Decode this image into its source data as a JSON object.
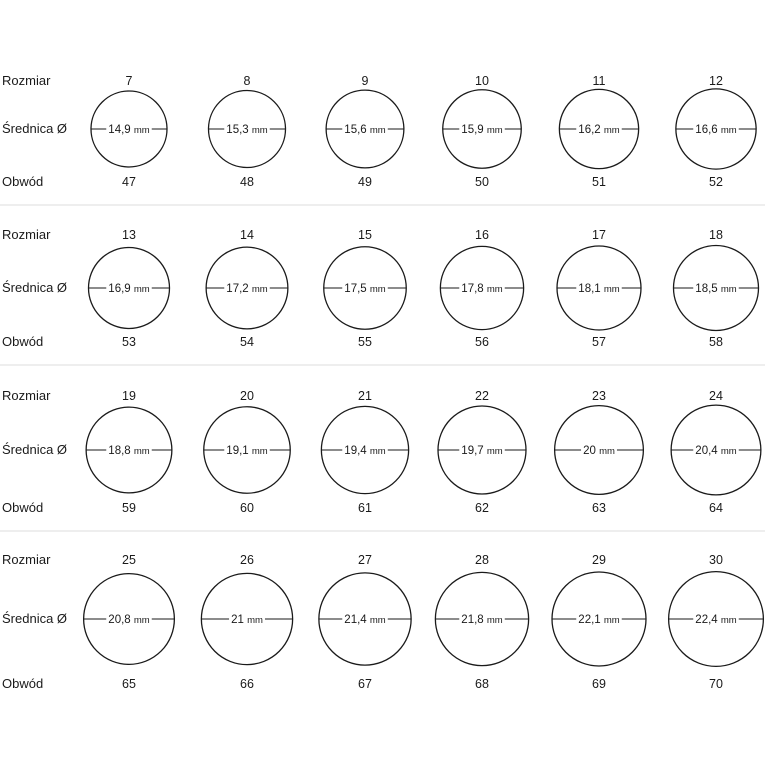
{
  "labels": {
    "size": "Rozmiar",
    "diameter": "Średnica Ø",
    "circumference": "Obwód",
    "unit": "mm"
  },
  "chart_data": {
    "type": "table",
    "columns": [
      "Rozmiar",
      "Średnica Ø",
      "Obwód"
    ],
    "rows": [
      {
        "size": "7",
        "diameter": "14,9",
        "circumference": "47"
      },
      {
        "size": "8",
        "diameter": "15,3",
        "circumference": "48"
      },
      {
        "size": "9",
        "diameter": "15,6",
        "circumference": "49"
      },
      {
        "size": "10",
        "diameter": "15,9",
        "circumference": "50"
      },
      {
        "size": "11",
        "diameter": "16,2",
        "circumference": "51"
      },
      {
        "size": "12",
        "diameter": "16,6",
        "circumference": "52"
      },
      {
        "size": "13",
        "diameter": "16,9",
        "circumference": "53"
      },
      {
        "size": "14",
        "diameter": "17,2",
        "circumference": "54"
      },
      {
        "size": "15",
        "diameter": "17,5",
        "circumference": "55"
      },
      {
        "size": "16",
        "diameter": "17,8",
        "circumference": "56"
      },
      {
        "size": "17",
        "diameter": "18,1",
        "circumference": "57"
      },
      {
        "size": "18",
        "diameter": "18,5",
        "circumference": "58"
      },
      {
        "size": "19",
        "diameter": "18,8",
        "circumference": "59"
      },
      {
        "size": "20",
        "diameter": "19,1",
        "circumference": "60"
      },
      {
        "size": "21",
        "diameter": "19,4",
        "circumference": "61"
      },
      {
        "size": "22",
        "diameter": "19,7",
        "circumference": "62"
      },
      {
        "size": "23",
        "diameter": "20",
        "circumference": "63"
      },
      {
        "size": "24",
        "diameter": "20,4",
        "circumference": "64"
      },
      {
        "size": "25",
        "diameter": "20,8",
        "circumference": "65"
      },
      {
        "size": "26",
        "diameter": "21",
        "circumference": "66"
      },
      {
        "size": "27",
        "diameter": "21,4",
        "circumference": "67"
      },
      {
        "size": "28",
        "diameter": "21,8",
        "circumference": "68"
      },
      {
        "size": "29",
        "diameter": "22,1",
        "circumference": "69"
      },
      {
        "size": "30",
        "diameter": "22,4",
        "circumference": "70"
      }
    ]
  }
}
